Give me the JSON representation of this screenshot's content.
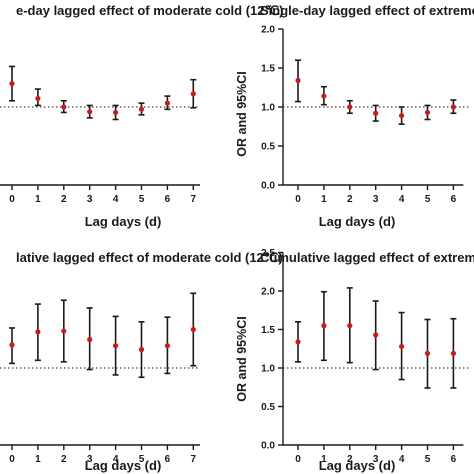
{
  "chart_data": [
    {
      "type": "scatter",
      "title": "e-day lagged effect of moderate cold (12℃)",
      "xlabel": "Lag days (d)",
      "ylabel": "",
      "categories": [
        "0",
        "1",
        "2",
        "3",
        "4",
        "5",
        "6",
        "7"
      ],
      "x": [
        0,
        1,
        2,
        3,
        4,
        5,
        6,
        7
      ],
      "series": [
        {
          "estimate": [
            1.3,
            1.11,
            1.0,
            0.94,
            0.93,
            0.97,
            1.05,
            1.17
          ],
          "lower": [
            1.08,
            1.02,
            0.93,
            0.86,
            0.84,
            0.9,
            0.97,
            0.99
          ],
          "upper": [
            1.52,
            1.23,
            1.08,
            1.02,
            1.02,
            1.05,
            1.14,
            1.35
          ]
        }
      ],
      "reference_line": 1.0,
      "ylim": [
        0,
        2.0
      ],
      "marker_color": "#cc1a1a",
      "errorbar_color": "#1a1a1a"
    },
    {
      "type": "scatter",
      "title": "Single-day lagged effect of extreme co",
      "xlabel": "Lag days (d)",
      "ylabel": "OR and 95%CI",
      "categories": [
        "0",
        "1",
        "2",
        "3",
        "4",
        "5",
        "6"
      ],
      "x": [
        0,
        1,
        2,
        3,
        4,
        5,
        6
      ],
      "yticks": [
        "0.0",
        "0.5",
        "1.0",
        "1.5",
        "2.0"
      ],
      "series": [
        {
          "estimate": [
            1.34,
            1.14,
            1.0,
            0.92,
            0.89,
            0.93,
            1.0
          ],
          "lower": [
            1.07,
            1.03,
            0.92,
            0.82,
            0.78,
            0.84,
            0.92
          ],
          "upper": [
            1.6,
            1.26,
            1.08,
            1.02,
            1.0,
            1.02,
            1.09
          ]
        }
      ],
      "reference_line": 1.0,
      "ylim": [
        0,
        2.0
      ],
      "marker_color": "#cc1a1a",
      "errorbar_color": "#1a1a1a"
    },
    {
      "type": "scatter",
      "title": "lative lagged effect of moderate cold (12℃)",
      "xlabel": "Lag days (d)",
      "ylabel": "",
      "categories": [
        "0",
        "1",
        "2",
        "3",
        "4",
        "5",
        "6",
        "7"
      ],
      "x": [
        0,
        1,
        2,
        3,
        4,
        5,
        6,
        7
      ],
      "series": [
        {
          "estimate": [
            1.3,
            1.47,
            1.48,
            1.37,
            1.29,
            1.24,
            1.29,
            1.5
          ],
          "lower": [
            1.06,
            1.1,
            1.08,
            0.98,
            0.91,
            0.88,
            0.93,
            1.03
          ],
          "upper": [
            1.52,
            1.83,
            1.88,
            1.78,
            1.67,
            1.6,
            1.66,
            1.97
          ]
        }
      ],
      "reference_line": 1.0,
      "ylim": [
        0,
        2.0
      ],
      "marker_color": "#cc1a1a",
      "errorbar_color": "#1a1a1a"
    },
    {
      "type": "scatter",
      "title": "Cumulative lagged effect of extreme co",
      "xlabel": "Lag days (d)",
      "ylabel": "OR and 95%CI",
      "categories": [
        "0",
        "1",
        "2",
        "3",
        "4",
        "5",
        "6"
      ],
      "x": [
        0,
        1,
        2,
        3,
        4,
        5,
        6
      ],
      "yticks": [
        "0.0",
        "0.5",
        "1.0",
        "1.5",
        "2.0",
        "2.5"
      ],
      "series": [
        {
          "estimate": [
            1.34,
            1.55,
            1.55,
            1.43,
            1.28,
            1.19,
            1.19
          ],
          "lower": [
            1.08,
            1.1,
            1.07,
            0.98,
            0.85,
            0.74,
            0.74
          ],
          "upper": [
            1.6,
            1.99,
            2.04,
            1.87,
            1.72,
            1.63,
            1.64
          ]
        }
      ],
      "reference_line": 1.0,
      "ylim": [
        0,
        2.5
      ],
      "marker_color": "#cc1a1a",
      "errorbar_color": "#1a1a1a"
    }
  ]
}
